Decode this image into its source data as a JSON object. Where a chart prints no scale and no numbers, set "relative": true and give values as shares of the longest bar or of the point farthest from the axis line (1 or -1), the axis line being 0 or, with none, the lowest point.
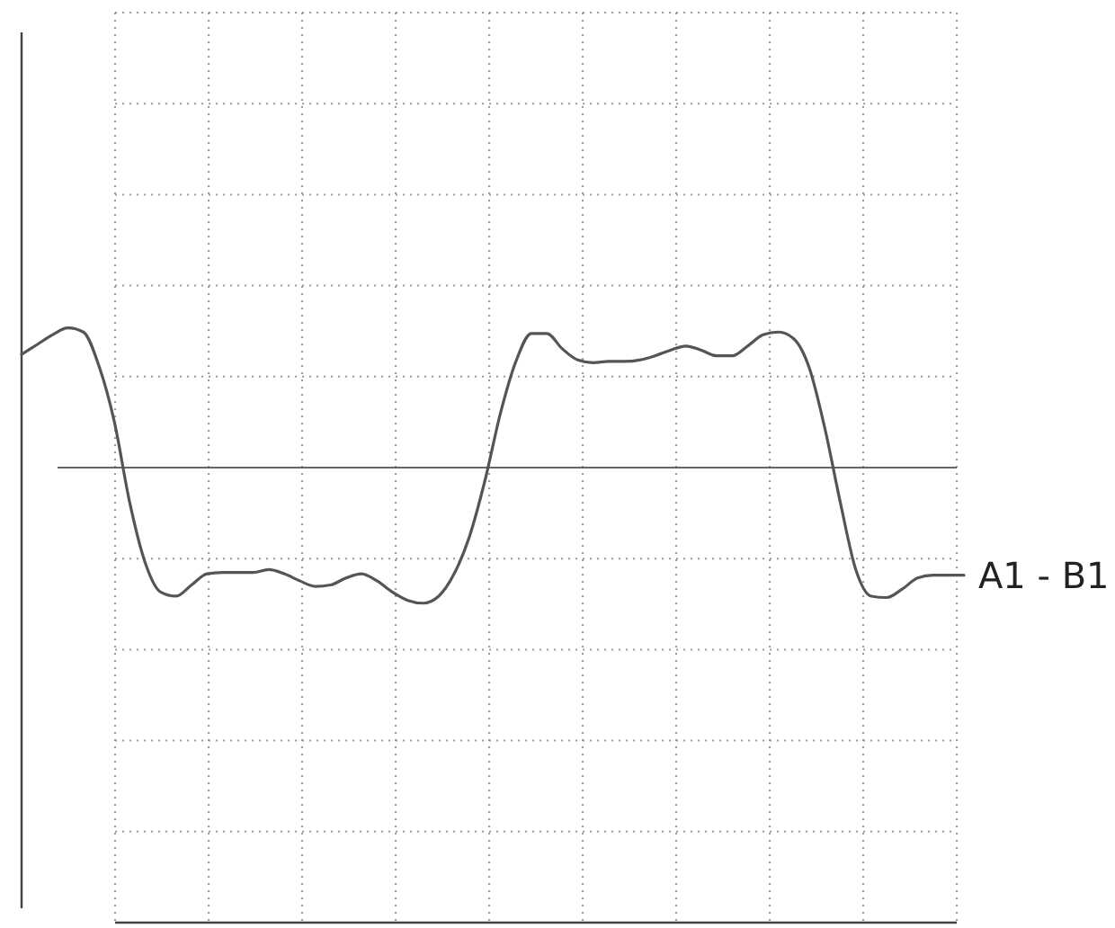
{
  "chart_data": {
    "type": "line",
    "relative": true,
    "grid": true,
    "marker": "none",
    "line_style": "solid",
    "categories": [
      null,
      null,
      null,
      null,
      null,
      null,
      null,
      null,
      null,
      null,
      null,
      null,
      null,
      null,
      null,
      null,
      null,
      null,
      null,
      null,
      null,
      null,
      null,
      null,
      null,
      null,
      null,
      null,
      null,
      null,
      null,
      null,
      null,
      null,
      null,
      null,
      null,
      null,
      null,
      null,
      null,
      null,
      null,
      null,
      null,
      null,
      null,
      null,
      null,
      null,
      null,
      null,
      null,
      null,
      null,
      null,
      null,
      null,
      null,
      null,
      null,
      null
    ],
    "series": [
      {
        "name": "A1 - B1",
        "color": "#555555",
        "values": [
          0.81,
          0.88,
          0.95,
          1.0,
          0.97,
          0.73,
          0.33,
          -0.25,
          -0.68,
          -0.89,
          -0.92,
          -0.84,
          -0.76,
          -0.75,
          -0.75,
          -0.75,
          -0.73,
          -0.76,
          -0.81,
          -0.85,
          -0.84,
          -0.79,
          -0.76,
          -0.81,
          -0.89,
          -0.95,
          -0.97,
          -0.92,
          -0.76,
          -0.49,
          -0.09,
          0.39,
          0.76,
          0.96,
          0.96,
          0.85,
          0.77,
          0.75,
          0.76,
          0.76,
          0.77,
          0.8,
          0.84,
          0.87,
          0.84,
          0.8,
          0.8,
          0.87,
          0.95,
          0.97,
          0.92,
          0.71,
          0.28,
          -0.25,
          -0.73,
          -0.92,
          -0.93,
          -0.87,
          -0.79,
          -0.77,
          -0.77,
          -0.77
        ]
      }
    ]
  }
}
